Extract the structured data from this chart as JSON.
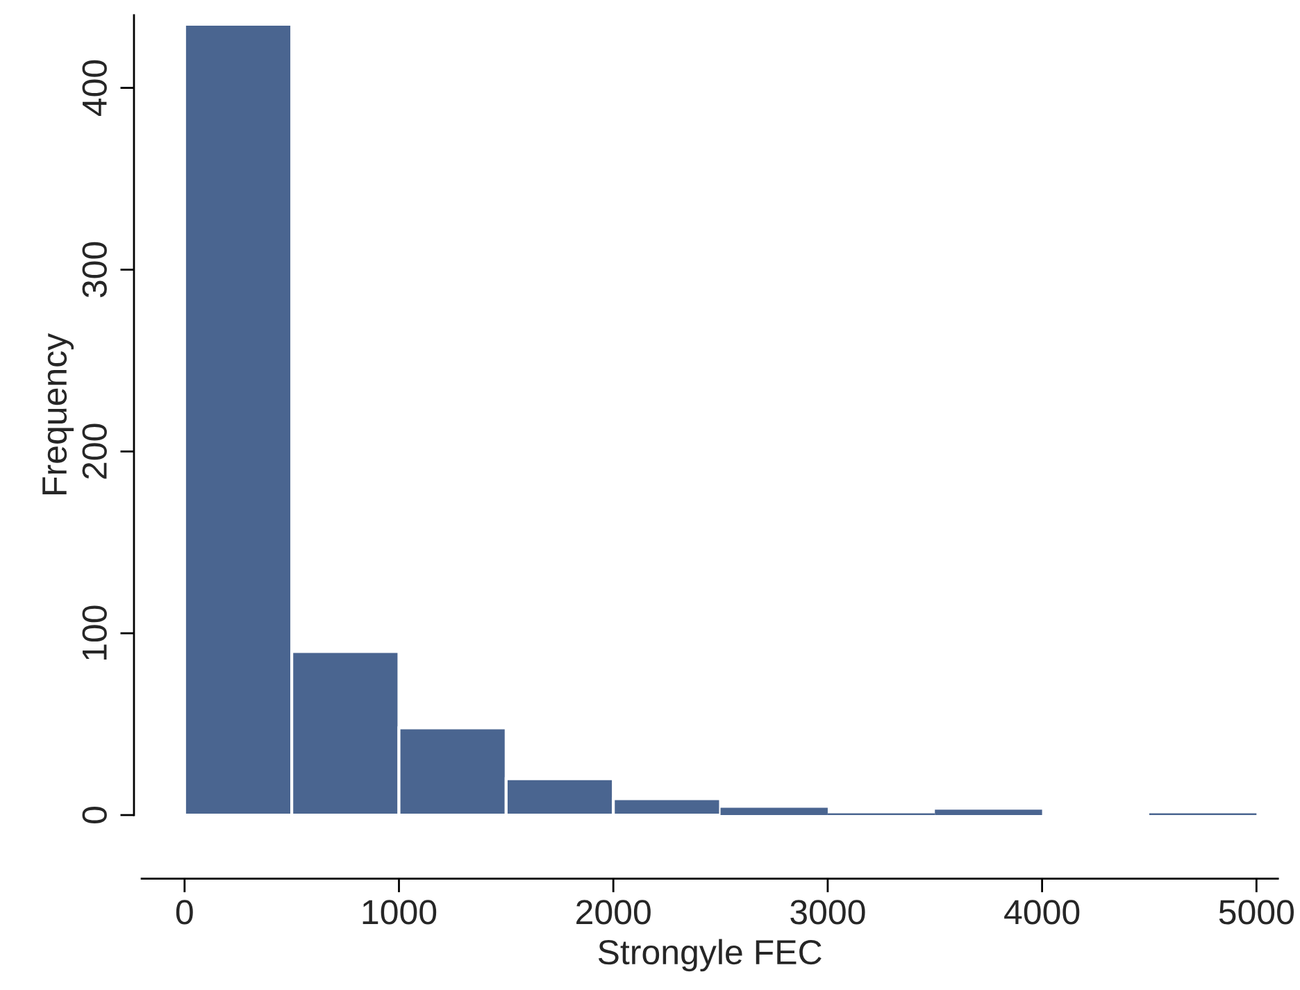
{
  "chart_data": {
    "type": "histogram",
    "xlabel": "Strongyle FEC",
    "ylabel": "Frequency",
    "bins": [
      0,
      500,
      1000,
      1500,
      2000,
      2500,
      3000,
      3500,
      4000,
      4500,
      5000
    ],
    "values": [
      435,
      90,
      48,
      20,
      9,
      4,
      1,
      3,
      0,
      1
    ],
    "color": "#4a6590",
    "xlim": [
      -200,
      5100
    ],
    "ylim": [
      0,
      440
    ],
    "xticks": [
      0,
      1000,
      2000,
      3000,
      4000,
      5000
    ],
    "yticks": [
      0,
      100,
      200,
      300,
      400
    ],
    "grid": false
  }
}
